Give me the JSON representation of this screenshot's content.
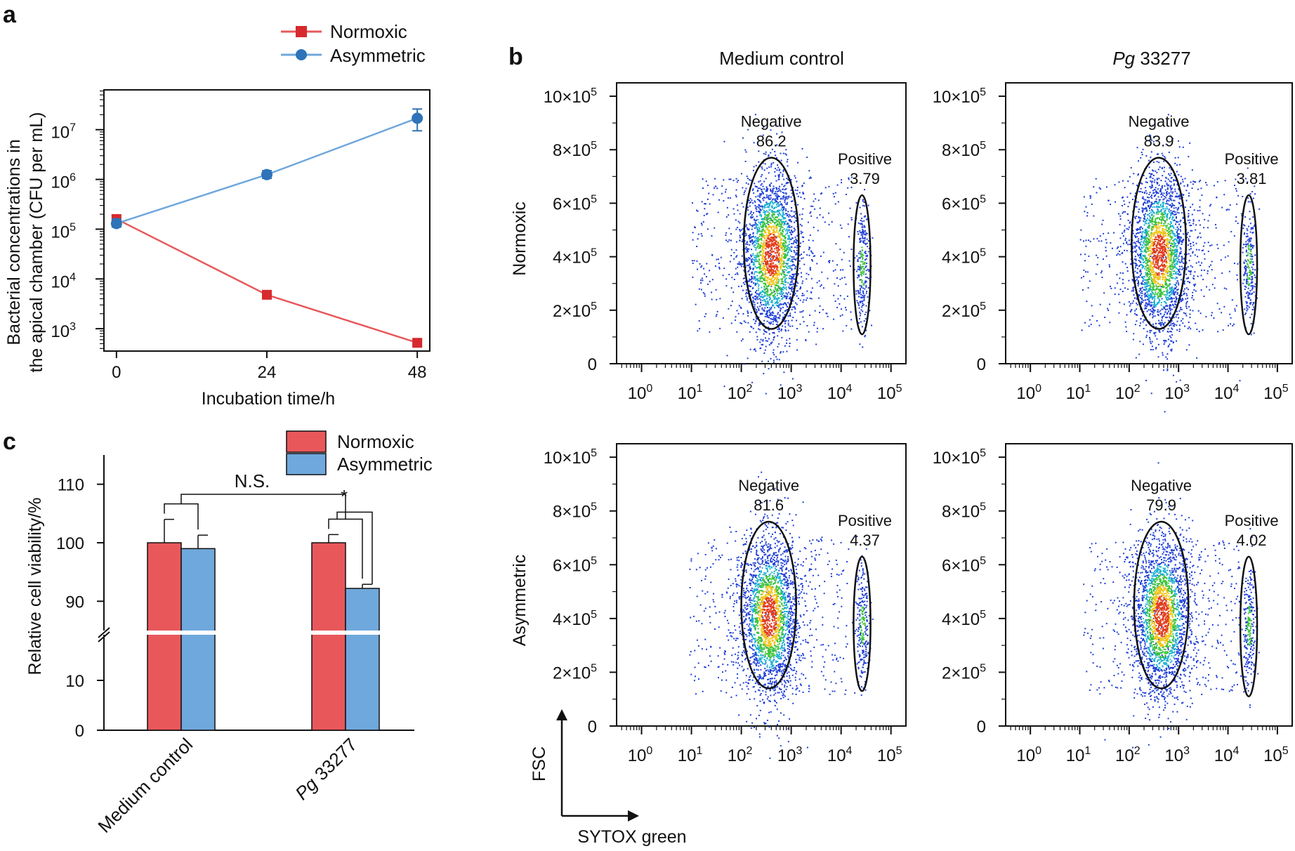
{
  "colors": {
    "normoxic": "#e8585b",
    "normoxic_dark": "#d62a2e",
    "asymmetric": "#6fa8dc",
    "asymmetric_dark": "#2f73b8",
    "axis": "#111111"
  },
  "panel_labels": {
    "a": "a",
    "b": "b",
    "c": "c"
  },
  "chart_data": [
    {
      "id": "a",
      "type": "line",
      "ylog": true,
      "xlabel": "Incubation time/h",
      "ylabel_line1": "Bacterial concentrations in",
      "ylabel_line2": "the apical chamber (CFU per mL)",
      "x_ticks": [
        0,
        24,
        48
      ],
      "xlim": [
        -2,
        50
      ],
      "ylim_log10": [
        2.55,
        7.8
      ],
      "y_ticks": [
        {
          "value_log10": 3,
          "base": "10",
          "exp": "3"
        },
        {
          "value_log10": 4,
          "base": "10",
          "exp": "4"
        },
        {
          "value_log10": 5,
          "base": "10",
          "exp": "5"
        },
        {
          "value_log10": 6,
          "base": "10",
          "exp": "6"
        },
        {
          "value_log10": 7,
          "base": "10",
          "exp": "7"
        }
      ],
      "series": [
        {
          "name": "Normoxic",
          "marker": "square",
          "x": [
            0,
            24,
            48
          ],
          "y": [
            160000,
            4800,
            520
          ],
          "err_high": [
            190000,
            5300,
            590
          ],
          "err_low": [
            140000,
            4400,
            460
          ]
        },
        {
          "name": "Asymmetric",
          "marker": "circle",
          "x": [
            0,
            24,
            48
          ],
          "y": [
            130000,
            1250000,
            17000000
          ],
          "err_high": [
            160000,
            1500000,
            26000000
          ],
          "err_low": [
            110000,
            1050000,
            9500000
          ]
        }
      ]
    },
    {
      "id": "c",
      "type": "bar",
      "ylabel": "Relative cell viability/%",
      "categories": [
        "Medium control",
        "Pg 33277"
      ],
      "category_labels": [
        {
          "italic": "",
          "rest": "Medium control"
        },
        {
          "italic": "Pg",
          "rest": " 33277"
        }
      ],
      "y_ticks_upper": [
        90,
        100,
        110
      ],
      "y_ticks_lower": [
        0,
        10
      ],
      "ylim_upper": [
        85,
        115
      ],
      "ylim_lower": [
        0,
        20
      ],
      "series": [
        {
          "name": "Normoxic",
          "values": [
            100,
            100
          ],
          "errors": [
            4,
            1.4
          ]
        },
        {
          "name": "Asymmetric",
          "values": [
            99,
            92.2
          ],
          "errors": [
            2.3,
            0.7
          ]
        }
      ],
      "annotations": {
        "ns": "N.S.",
        "star": "*"
      }
    },
    {
      "id": "b",
      "type": "scatter",
      "column_titles": [
        {
          "italic": "",
          "rest": "Medium control"
        },
        {
          "italic": "Pg",
          "rest": " 33277"
        }
      ],
      "row_titles": [
        "Normoxic",
        "Asymmetric"
      ],
      "x_axis_label": "SYTOX green",
      "y_axis_label": "FSC",
      "x_scale": "log10",
      "xlim_log10": [
        -0.5,
        5.3
      ],
      "x_ticks": [
        {
          "value_log10": 0,
          "base": "10",
          "exp": "0"
        },
        {
          "value_log10": 1,
          "base": "10",
          "exp": "1"
        },
        {
          "value_log10": 2,
          "base": "10",
          "exp": "2"
        },
        {
          "value_log10": 3,
          "base": "10",
          "exp": "3"
        },
        {
          "value_log10": 4,
          "base": "10",
          "exp": "4"
        },
        {
          "value_log10": 5,
          "base": "10",
          "exp": "5"
        }
      ],
      "ylim": [
        0,
        1050000
      ],
      "y_ticks": [
        {
          "value": 0,
          "label": "0",
          "exp": ""
        },
        {
          "value": 200000,
          "label": "2×10",
          "exp": "5"
        },
        {
          "value": 400000,
          "label": "4×10",
          "exp": "5"
        },
        {
          "value": 600000,
          "label": "6×10",
          "exp": "5"
        },
        {
          "value": 800000,
          "label": "8×10",
          "exp": "5"
        },
        {
          "value": 1000000,
          "label": "10×10",
          "exp": "5"
        }
      ],
      "panels": [
        {
          "row": "Normoxic",
          "column": "Medium control",
          "negative_label": "Negative",
          "negative_pct": "86.2",
          "positive_label": "Positive",
          "positive_pct": "3.79",
          "neg_gate": {
            "cx_log10": 2.6,
            "cy": 450000,
            "rx_log10": 0.55,
            "ry": 320000
          },
          "pos_gate": {
            "cx_log10": 4.42,
            "cy": 370000,
            "rx_log10": 0.17,
            "ry": 260000
          }
        },
        {
          "row": "Normoxic",
          "column": "Pg 33277",
          "negative_label": "Negative",
          "negative_pct": "83.9",
          "positive_label": "Positive",
          "positive_pct": "3.81",
          "neg_gate": {
            "cx_log10": 2.6,
            "cy": 450000,
            "rx_log10": 0.55,
            "ry": 320000
          },
          "pos_gate": {
            "cx_log10": 4.42,
            "cy": 370000,
            "rx_log10": 0.17,
            "ry": 260000
          }
        },
        {
          "row": "Asymmetric",
          "column": "Medium control",
          "negative_label": "Negative",
          "negative_pct": "81.6",
          "positive_label": "Positive",
          "positive_pct": "4.37",
          "neg_gate": {
            "cx_log10": 2.55,
            "cy": 450000,
            "rx_log10": 0.55,
            "ry": 310000
          },
          "pos_gate": {
            "cx_log10": 4.42,
            "cy": 380000,
            "rx_log10": 0.17,
            "ry": 250000
          }
        },
        {
          "row": "Asymmetric",
          "column": "Pg 33277",
          "negative_label": "Negative",
          "negative_pct": "79.9",
          "positive_label": "Positive",
          "positive_pct": "4.02",
          "neg_gate": {
            "cx_log10": 2.65,
            "cy": 450000,
            "rx_log10": 0.55,
            "ry": 310000
          },
          "pos_gate": {
            "cx_log10": 4.42,
            "cy": 370000,
            "rx_log10": 0.17,
            "ry": 260000
          }
        }
      ]
    }
  ]
}
